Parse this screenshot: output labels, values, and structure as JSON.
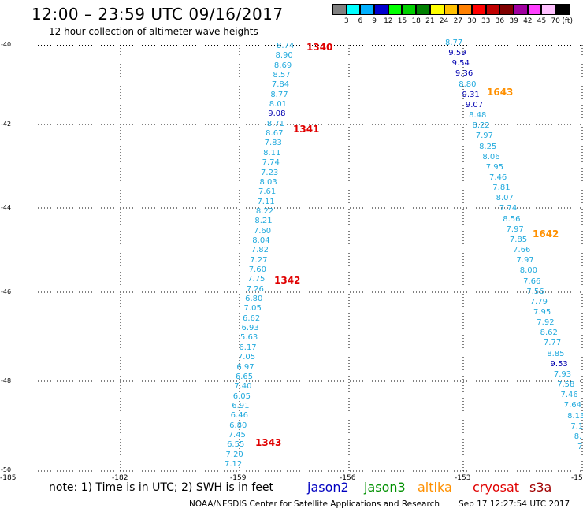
{
  "header": {
    "title": "12:00 – 23:59 UTC 09/16/2017",
    "subtitle": "12 hour collection of altimeter wave heights"
  },
  "colorbar": {
    "unit": "(ft)",
    "swatches": [
      "#808080",
      "#00ffff",
      "#00b0ff",
      "#0000d0",
      "#00ff00",
      "#00d000",
      "#008000",
      "#ffff00",
      "#ffc000",
      "#ff8000",
      "#ff0000",
      "#c00000",
      "#800000",
      "#a000a0",
      "#ff40ff",
      "#ffc0ff",
      "#000000"
    ],
    "labels": [
      "3",
      "6",
      "9",
      "12",
      "15",
      "18",
      "21",
      "24",
      "27",
      "30",
      "33",
      "36",
      "39",
      "42",
      "45",
      "70"
    ]
  },
  "axes": {
    "y_ticks": [
      "-40",
      "-42",
      "-44",
      "-46",
      "-48",
      "-50"
    ],
    "x_ticks": [
      "-185",
      "-182",
      "-159",
      "-156",
      "-153",
      "-15"
    ]
  },
  "footer": {
    "note": "note: 1) Time is in UTC; 2) SWH is in feet",
    "legend": [
      {
        "name": "jason2",
        "color": "#0000c0"
      },
      {
        "name": "jason3",
        "color": "#009000"
      },
      {
        "name": "altika",
        "color": "#ff9000"
      },
      {
        "name": "cryosat",
        "color": "#e00000"
      },
      {
        "name": "s3a",
        "color": "#a00000"
      }
    ],
    "credit": "NOAA/NESDIS Center for Satellite Applications and Research",
    "timestamp": "Sep 17 12:27:54 UTC 2017"
  },
  "tracks": {
    "left_values": [
      "8.74",
      "8.90",
      "8.69",
      "8.57",
      "7.84",
      "8.77",
      "8.01",
      "9.08",
      "8.71",
      "8.67",
      "7.83",
      "8.11",
      "7.74",
      "7.23",
      "8.03",
      "7.61",
      "7.11",
      "8.22",
      "8.21",
      "7.60",
      "8.04",
      "7.82",
      "7.27",
      "7.60",
      "7.75",
      "7.26",
      "6.80",
      "7.05",
      "6.62",
      "6.93",
      "5.63",
      "6.17",
      "7.05",
      "6.97",
      "6.65",
      "7.40",
      "6.05",
      "6.91",
      "6.46",
      "6.80",
      "7.45",
      "6.55",
      "7.20",
      "7.12"
    ],
    "right_values": [
      "8.77",
      "9.59",
      "9.54",
      "9.36",
      "8.80",
      "9.31",
      "9.07",
      "8.48",
      "8.22",
      "7.97",
      "8.25",
      "8.06",
      "7.95",
      "7.46",
      "7.81",
      "8.07",
      "7.74",
      "8.56",
      "7.97",
      "7.85",
      "7.66",
      "7.97",
      "8.00",
      "7.66",
      "7.56",
      "7.79",
      "7.95",
      "7.92",
      "8.62",
      "7.77",
      "8.85",
      "9.53",
      "7.93",
      "7.58",
      "7.46",
      "7.64",
      "8.13",
      "7.1",
      "8.",
      "7."
    ],
    "time_tags": [
      {
        "label": "1340",
        "color": "#e00000"
      },
      {
        "label": "1341",
        "color": "#e00000"
      },
      {
        "label": "1342",
        "color": "#e00000"
      },
      {
        "label": "1343",
        "color": "#e00000"
      },
      {
        "label": "1643",
        "color": "#ff9000"
      },
      {
        "label": "1642",
        "color": "#ff9000"
      }
    ]
  }
}
